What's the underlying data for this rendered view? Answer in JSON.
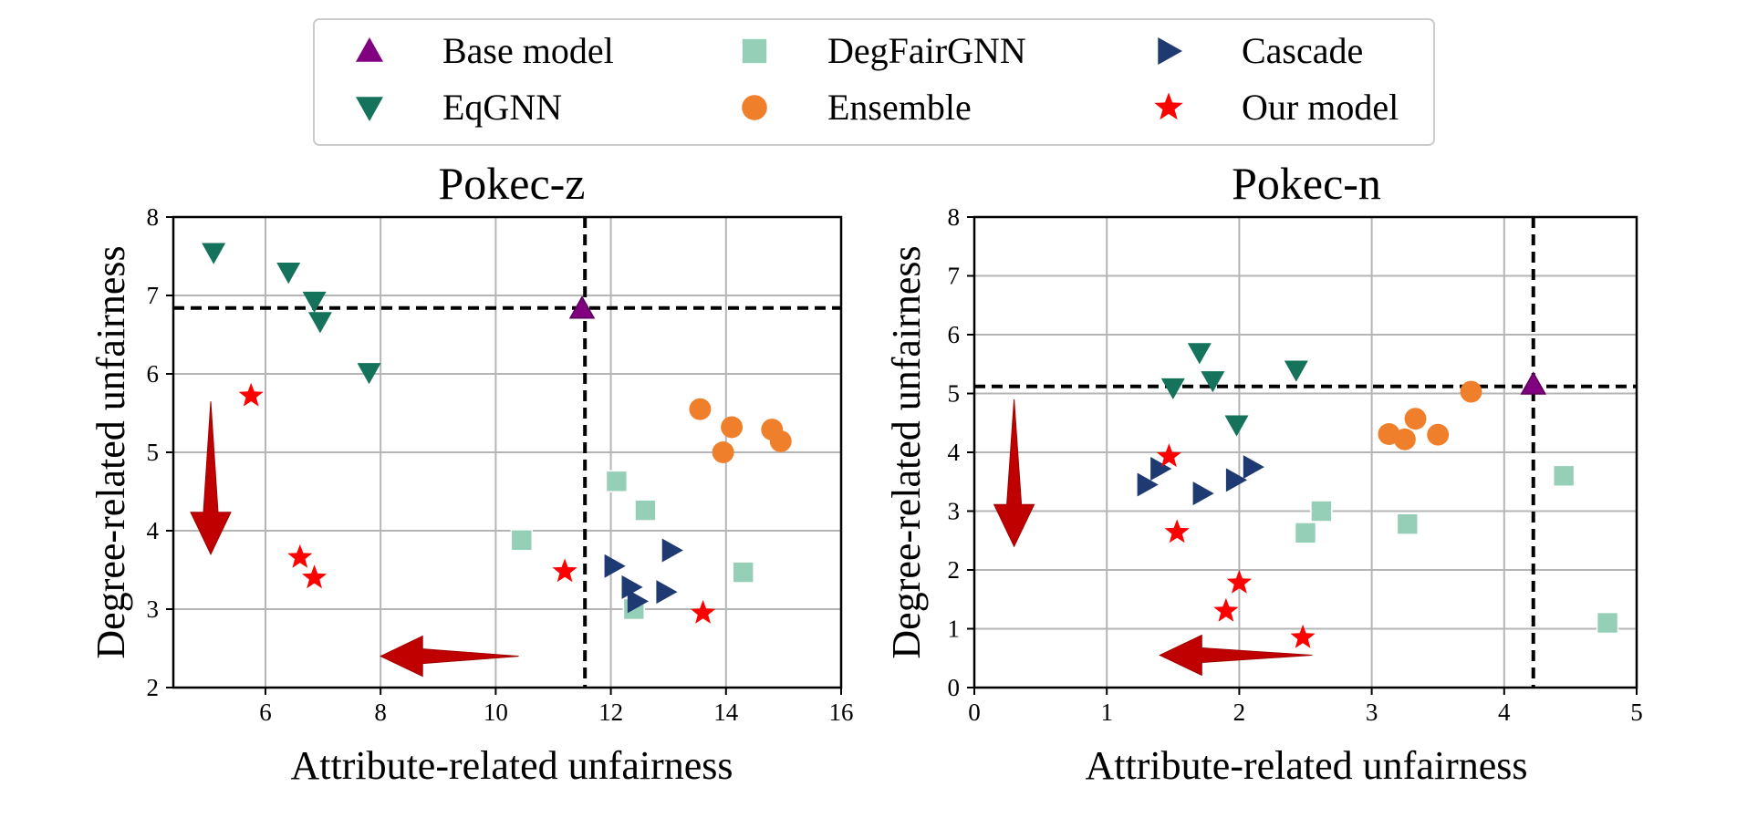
{
  "colors": {
    "base": "#800080",
    "eqgnn": "#14735a",
    "degfair": "#96cfb8",
    "ensemble": "#f07f2c",
    "cascade": "#1f3a73",
    "ours": "#ff0000",
    "arrow": "#c00000",
    "grid": "#b5b5b5"
  },
  "legend": {
    "entries": [
      {
        "key": "base",
        "label": "Base model",
        "marker": "triangle-up"
      },
      {
        "key": "eqgnn",
        "label": "EqGNN",
        "marker": "triangle-down"
      },
      {
        "key": "degfair",
        "label": "DegFairGNN",
        "marker": "square"
      },
      {
        "key": "ensemble",
        "label": "Ensemble",
        "marker": "circle"
      },
      {
        "key": "cascade",
        "label": "Cascade",
        "marker": "triangle-right"
      },
      {
        "key": "ours",
        "label": "Our model",
        "marker": "star"
      }
    ]
  },
  "chart_data": [
    {
      "type": "scatter",
      "title": "Pokec-z",
      "xlabel": "Attribute-related unfairness",
      "ylabel": "Degree-related unfairness",
      "xlim": [
        4.4,
        16
      ],
      "ylim": [
        2,
        8
      ],
      "xticks": [
        6,
        8,
        10,
        12,
        14,
        16
      ],
      "yticks": [
        2,
        3,
        4,
        5,
        6,
        7,
        8
      ],
      "reference_lines": {
        "x": 11.55,
        "y": 6.84
      },
      "improvement_arrows": [
        {
          "direction": "down",
          "from": [
            5.05,
            5.65
          ],
          "to": [
            5.05,
            3.7
          ]
        },
        {
          "direction": "left",
          "from": [
            10.4,
            2.4
          ],
          "to": [
            8.0,
            2.4
          ]
        }
      ],
      "series": [
        {
          "key": "base",
          "name": "Base model",
          "points": [
            [
              11.5,
              6.83
            ]
          ]
        },
        {
          "key": "eqgnn",
          "name": "EqGNN",
          "points": [
            [
              5.1,
              7.55
            ],
            [
              6.4,
              7.3
            ],
            [
              6.85,
              6.93
            ],
            [
              6.95,
              6.67
            ],
            [
              7.8,
              6.02
            ]
          ]
        },
        {
          "key": "degfair",
          "name": "DegFairGNN",
          "points": [
            [
              12.1,
              4.63
            ],
            [
              12.6,
              4.26
            ],
            [
              10.45,
              3.88
            ],
            [
              14.3,
              3.47
            ],
            [
              12.4,
              3.0
            ]
          ]
        },
        {
          "key": "ensemble",
          "name": "Ensemble",
          "points": [
            [
              13.55,
              5.55
            ],
            [
              14.1,
              5.32
            ],
            [
              14.8,
              5.29
            ],
            [
              14.95,
              5.14
            ],
            [
              13.95,
              5.0
            ]
          ]
        },
        {
          "key": "cascade",
          "name": "Cascade",
          "points": [
            [
              12.05,
              3.55
            ],
            [
              13.05,
              3.75
            ],
            [
              12.35,
              3.28
            ],
            [
              12.95,
              3.22
            ],
            [
              12.45,
              3.1
            ]
          ]
        },
        {
          "key": "ours",
          "name": "Our model",
          "points": [
            [
              5.75,
              5.72
            ],
            [
              6.6,
              3.66
            ],
            [
              6.85,
              3.4
            ],
            [
              11.2,
              3.48
            ],
            [
              13.6,
              2.95
            ]
          ]
        }
      ]
    },
    {
      "type": "scatter",
      "title": "Pokec-n",
      "xlabel": "Attribute-related unfairness",
      "ylabel": "Degree-related unfairness",
      "xlim": [
        0,
        5
      ],
      "ylim": [
        0,
        8
      ],
      "xticks": [
        0,
        1,
        2,
        3,
        4,
        5
      ],
      "yticks": [
        0,
        1,
        2,
        3,
        4,
        5,
        6,
        7,
        8
      ],
      "reference_lines": {
        "x": 4.22,
        "y": 5.12
      },
      "improvement_arrows": [
        {
          "direction": "down",
          "from": [
            0.3,
            4.9
          ],
          "to": [
            0.3,
            2.4
          ]
        },
        {
          "direction": "left",
          "from": [
            2.55,
            0.55
          ],
          "to": [
            1.4,
            0.55
          ]
        }
      ],
      "series": [
        {
          "key": "base",
          "name": "Base model",
          "points": [
            [
              4.22,
              5.15
            ]
          ]
        },
        {
          "key": "eqgnn",
          "name": "EqGNN",
          "points": [
            [
              1.7,
              5.7
            ],
            [
              2.43,
              5.4
            ],
            [
              1.5,
              5.1
            ],
            [
              1.8,
              5.22
            ],
            [
              1.98,
              4.47
            ]
          ]
        },
        {
          "key": "degfair",
          "name": "DegFairGNN",
          "points": [
            [
              4.45,
              3.6
            ],
            [
              2.62,
              3.0
            ],
            [
              3.27,
              2.78
            ],
            [
              2.5,
              2.63
            ],
            [
              4.78,
              1.1
            ]
          ]
        },
        {
          "key": "ensemble",
          "name": "Ensemble",
          "points": [
            [
              3.75,
              5.03
            ],
            [
              3.33,
              4.57
            ],
            [
              3.13,
              4.31
            ],
            [
              3.5,
              4.3
            ],
            [
              3.25,
              4.22
            ]
          ]
        },
        {
          "key": "cascade",
          "name": "Cascade",
          "points": [
            [
              1.4,
              3.72
            ],
            [
              2.1,
              3.75
            ],
            [
              1.3,
              3.45
            ],
            [
              1.97,
              3.53
            ],
            [
              1.72,
              3.3
            ]
          ]
        },
        {
          "key": "ours",
          "name": "Our model",
          "points": [
            [
              1.47,
              3.93
            ],
            [
              1.53,
              2.64
            ],
            [
              2.0,
              1.78
            ],
            [
              1.9,
              1.3
            ],
            [
              2.48,
              0.85
            ]
          ]
        }
      ]
    }
  ]
}
